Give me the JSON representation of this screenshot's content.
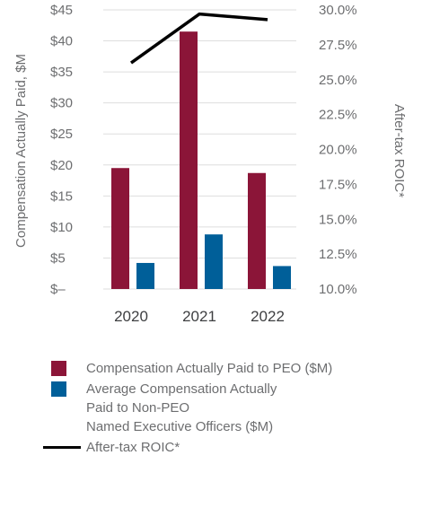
{
  "chart_data": {
    "type": "bar",
    "categories": [
      "2020",
      "2021",
      "2022"
    ],
    "series": [
      {
        "name": "Compensation Actually Paid to PEO ($M)",
        "type": "bar",
        "axis": "left",
        "color": "#8b1538",
        "values": [
          19.5,
          41.5,
          18.7
        ]
      },
      {
        "name": "Average Compensation Actually\nPaid to Non-PEO\nNamed Executive Officers ($M)",
        "type": "bar",
        "axis": "left",
        "color": "#005f99",
        "values": [
          4.2,
          8.8,
          3.7
        ]
      },
      {
        "name": "After-tax ROIC*",
        "type": "line",
        "axis": "right",
        "color": "#000000",
        "values": [
          26.2,
          29.7,
          29.3
        ]
      }
    ],
    "ylabel": "Compensation Actually Paid, $M",
    "y2label": "After-tax ROIC*",
    "ylim": [
      0,
      45
    ],
    "y2lim": [
      10,
      30
    ],
    "yticks": [
      "$–",
      "$5",
      "$10",
      "$15",
      "$20",
      "$25",
      "$30",
      "$35",
      "$40",
      "$45"
    ],
    "y2ticks": [
      "10.0%",
      "12.5%",
      "15.0%",
      "17.5%",
      "20.0%",
      "22.5%",
      "25.0%",
      "27.5%",
      "30.0%"
    ],
    "grid": true,
    "legend": "bottom"
  }
}
